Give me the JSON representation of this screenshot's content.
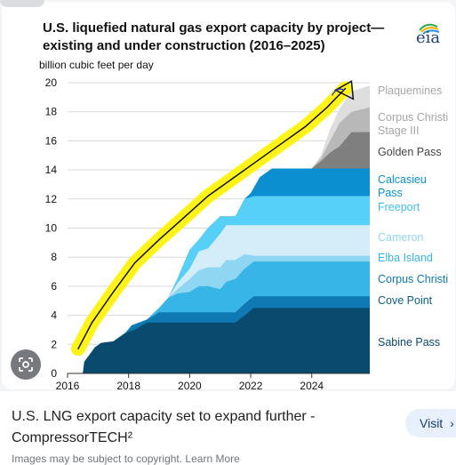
{
  "page": {
    "caption": "U.S. LNG export capacity set to expand further - CompressorTECH²",
    "visit_label": "Visit",
    "visit_icon": "chevron-right-icon",
    "bottom_text": "Images may be subject to copyright. Learn More",
    "lens_icon": "google-lens-icon"
  },
  "chart_data": {
    "type": "area",
    "title_line1": "U.S. liquefied natural gas export capacity by project—",
    "title_line2": "existing and under construction (2016–2025)",
    "ylabel": "billion cubic feet per day",
    "logo": "eia",
    "xlim": [
      2016,
      2025.9
    ],
    "ylim": [
      0,
      20
    ],
    "xticks": [
      2016,
      2018,
      2020,
      2022,
      2024
    ],
    "yticks": [
      0,
      2,
      4,
      6,
      8,
      10,
      12,
      14,
      16,
      18,
      20
    ],
    "grid": true,
    "legend_position": "right",
    "series": [
      {
        "name": "Sabine Pass",
        "color": "#0a4a6e",
        "points": [
          [
            2016.5,
            0
          ],
          [
            2016.55,
            0.8
          ],
          [
            2016.9,
            1.8
          ],
          [
            2017.1,
            2.1
          ],
          [
            2017.5,
            2.2
          ],
          [
            2017.9,
            2.8
          ],
          [
            2018.2,
            3.0
          ],
          [
            2018.6,
            3.5
          ],
          [
            2019.0,
            3.5
          ],
          [
            2019.5,
            3.5
          ],
          [
            2020.0,
            3.5
          ],
          [
            2020.5,
            3.5
          ],
          [
            2021.0,
            3.5
          ],
          [
            2021.5,
            3.5
          ],
          [
            2021.8,
            4.0
          ],
          [
            2022.1,
            4.5
          ],
          [
            2023.0,
            4.5
          ],
          [
            2024.0,
            4.5
          ],
          [
            2025.0,
            4.5
          ],
          [
            2025.9,
            4.5
          ]
        ]
      },
      {
        "name": "Cove Point",
        "color": "#0e79b2",
        "points": [
          [
            2016.5,
            0
          ],
          [
            2016.55,
            0.8
          ],
          [
            2016.9,
            1.8
          ],
          [
            2017.1,
            2.1
          ],
          [
            2017.5,
            2.2
          ],
          [
            2017.9,
            2.8
          ],
          [
            2018.1,
            3.3
          ],
          [
            2018.6,
            3.7
          ],
          [
            2019.0,
            4.2
          ],
          [
            2019.5,
            4.2
          ],
          [
            2020.0,
            4.2
          ],
          [
            2020.5,
            4.2
          ],
          [
            2021.0,
            4.2
          ],
          [
            2021.5,
            4.2
          ],
          [
            2021.8,
            4.8
          ],
          [
            2022.1,
            5.3
          ],
          [
            2023.0,
            5.3
          ],
          [
            2024.0,
            5.3
          ],
          [
            2025.0,
            5.3
          ],
          [
            2025.9,
            5.3
          ]
        ]
      },
      {
        "name": "Corpus Christi",
        "color": "#36b5e6",
        "points": [
          [
            2016.5,
            0
          ],
          [
            2016.55,
            0.8
          ],
          [
            2016.9,
            1.8
          ],
          [
            2017.1,
            2.1
          ],
          [
            2017.5,
            2.2
          ],
          [
            2017.9,
            2.8
          ],
          [
            2018.1,
            3.3
          ],
          [
            2018.6,
            3.7
          ],
          [
            2019.0,
            4.5
          ],
          [
            2019.3,
            5.2
          ],
          [
            2019.6,
            5.5
          ],
          [
            2020.0,
            5.6
          ],
          [
            2020.3,
            6.0
          ],
          [
            2020.6,
            6.0
          ],
          [
            2021.0,
            5.8
          ],
          [
            2021.2,
            6.3
          ],
          [
            2021.5,
            6.5
          ],
          [
            2021.8,
            7.2
          ],
          [
            2022.1,
            7.7
          ],
          [
            2023.0,
            7.7
          ],
          [
            2024.0,
            7.7
          ],
          [
            2025.0,
            7.7
          ],
          [
            2025.9,
            7.7
          ]
        ]
      },
      {
        "name": "Elba Island",
        "color": "#8fd6f2",
        "points": [
          [
            2016.5,
            0
          ],
          [
            2016.55,
            0.8
          ],
          [
            2016.9,
            1.8
          ],
          [
            2017.1,
            2.1
          ],
          [
            2017.5,
            2.2
          ],
          [
            2017.9,
            2.8
          ],
          [
            2018.1,
            3.3
          ],
          [
            2018.6,
            3.7
          ],
          [
            2019.0,
            4.5
          ],
          [
            2019.3,
            5.2
          ],
          [
            2019.6,
            5.8
          ],
          [
            2020.0,
            6.5
          ],
          [
            2020.3,
            7.1
          ],
          [
            2020.6,
            7.3
          ],
          [
            2021.0,
            7.3
          ],
          [
            2021.2,
            7.8
          ],
          [
            2021.5,
            7.8
          ],
          [
            2021.8,
            8.2
          ],
          [
            2022.1,
            8.1
          ],
          [
            2023.0,
            8.1
          ],
          [
            2024.0,
            8.1
          ],
          [
            2025.0,
            8.1
          ],
          [
            2025.9,
            8.1
          ]
        ]
      },
      {
        "name": "Cameron",
        "color": "#d3eef9",
        "points": [
          [
            2016.5,
            0
          ],
          [
            2016.55,
            0.8
          ],
          [
            2016.9,
            1.8
          ],
          [
            2017.1,
            2.1
          ],
          [
            2017.5,
            2.2
          ],
          [
            2017.9,
            2.8
          ],
          [
            2018.1,
            3.3
          ],
          [
            2018.6,
            3.7
          ],
          [
            2019.0,
            4.5
          ],
          [
            2019.3,
            5.2
          ],
          [
            2019.6,
            6.2
          ],
          [
            2020.0,
            7.2
          ],
          [
            2020.3,
            8.4
          ],
          [
            2020.6,
            8.6
          ],
          [
            2021.0,
            9.6
          ],
          [
            2021.2,
            10.2
          ],
          [
            2021.5,
            10.2
          ],
          [
            2021.8,
            10.2
          ],
          [
            2022.1,
            10.2
          ],
          [
            2023.0,
            10.2
          ],
          [
            2024.0,
            10.2
          ],
          [
            2025.0,
            10.2
          ],
          [
            2025.9,
            10.2
          ]
        ]
      },
      {
        "name": "Freeport",
        "color": "#57d0f7",
        "points": [
          [
            2016.5,
            0
          ],
          [
            2016.55,
            0.8
          ],
          [
            2016.9,
            1.8
          ],
          [
            2017.1,
            2.1
          ],
          [
            2017.5,
            2.2
          ],
          [
            2017.9,
            2.8
          ],
          [
            2018.1,
            3.3
          ],
          [
            2018.6,
            3.7
          ],
          [
            2019.0,
            4.5
          ],
          [
            2019.3,
            5.2
          ],
          [
            2019.6,
            6.5
          ],
          [
            2020.0,
            8.5
          ],
          [
            2020.3,
            9.2
          ],
          [
            2020.6,
            10.0
          ],
          [
            2021.0,
            10.8
          ],
          [
            2021.2,
            10.8
          ],
          [
            2021.5,
            10.8
          ],
          [
            2021.8,
            12.0
          ],
          [
            2022.1,
            12.2
          ],
          [
            2023.0,
            12.2
          ],
          [
            2024.0,
            12.2
          ],
          [
            2025.0,
            12.2
          ],
          [
            2025.9,
            12.2
          ]
        ]
      },
      {
        "name": "Calcasieu Pass",
        "color": "#0c8fd0",
        "points": [
          [
            2016.5,
            0
          ],
          [
            2016.55,
            0.8
          ],
          [
            2016.9,
            1.8
          ],
          [
            2017.1,
            2.1
          ],
          [
            2017.5,
            2.2
          ],
          [
            2017.9,
            2.8
          ],
          [
            2018.1,
            3.3
          ],
          [
            2018.6,
            3.7
          ],
          [
            2019.0,
            4.5
          ],
          [
            2019.3,
            5.2
          ],
          [
            2019.6,
            6.5
          ],
          [
            2020.0,
            8.5
          ],
          [
            2020.3,
            9.2
          ],
          [
            2020.6,
            10.0
          ],
          [
            2021.0,
            10.8
          ],
          [
            2021.2,
            10.8
          ],
          [
            2021.5,
            10.8
          ],
          [
            2021.8,
            12.0
          ],
          [
            2022.0,
            12.4
          ],
          [
            2022.3,
            13.5
          ],
          [
            2022.7,
            14.1
          ],
          [
            2023.0,
            14.1
          ],
          [
            2024.0,
            14.1
          ],
          [
            2025.0,
            14.1
          ],
          [
            2025.9,
            14.1
          ]
        ]
      },
      {
        "name": "Golden Pass",
        "color": "#7f7f7f",
        "points": [
          [
            2016.5,
            0
          ],
          [
            2016.55,
            0.8
          ],
          [
            2016.9,
            1.8
          ],
          [
            2017.1,
            2.1
          ],
          [
            2017.5,
            2.2
          ],
          [
            2017.9,
            2.8
          ],
          [
            2018.1,
            3.3
          ],
          [
            2018.6,
            3.7
          ],
          [
            2019.0,
            4.5
          ],
          [
            2019.3,
            5.2
          ],
          [
            2019.6,
            6.5
          ],
          [
            2020.0,
            8.5
          ],
          [
            2020.3,
            9.2
          ],
          [
            2020.6,
            10.0
          ],
          [
            2021.0,
            10.8
          ],
          [
            2021.2,
            10.8
          ],
          [
            2021.5,
            10.8
          ],
          [
            2021.8,
            12.0
          ],
          [
            2022.0,
            12.4
          ],
          [
            2022.3,
            13.5
          ],
          [
            2022.7,
            14.1
          ],
          [
            2023.0,
            14.1
          ],
          [
            2024.0,
            14.1
          ],
          [
            2024.3,
            14.6
          ],
          [
            2024.6,
            15.2
          ],
          [
            2024.9,
            15.6
          ],
          [
            2025.3,
            16.6
          ],
          [
            2025.9,
            16.6
          ]
        ]
      },
      {
        "name": "Corpus Christi Stage III",
        "color": "#b8b8b8",
        "points": [
          [
            2016.5,
            0
          ],
          [
            2016.55,
            0.8
          ],
          [
            2016.9,
            1.8
          ],
          [
            2017.1,
            2.1
          ],
          [
            2017.5,
            2.2
          ],
          [
            2017.9,
            2.8
          ],
          [
            2018.1,
            3.3
          ],
          [
            2018.6,
            3.7
          ],
          [
            2019.0,
            4.5
          ],
          [
            2019.3,
            5.2
          ],
          [
            2019.6,
            6.5
          ],
          [
            2020.0,
            8.5
          ],
          [
            2020.3,
            9.2
          ],
          [
            2020.6,
            10.0
          ],
          [
            2021.0,
            10.8
          ],
          [
            2021.2,
            10.8
          ],
          [
            2021.5,
            10.8
          ],
          [
            2021.8,
            12.0
          ],
          [
            2022.0,
            12.4
          ],
          [
            2022.3,
            13.5
          ],
          [
            2022.7,
            14.1
          ],
          [
            2023.0,
            14.1
          ],
          [
            2024.0,
            14.1
          ],
          [
            2024.3,
            14.8
          ],
          [
            2024.6,
            16.0
          ],
          [
            2024.9,
            17.2
          ],
          [
            2025.3,
            18.0
          ],
          [
            2025.9,
            18.3
          ]
        ]
      },
      {
        "name": "Plaquemines",
        "color": "#dedede",
        "points": [
          [
            2016.5,
            0
          ],
          [
            2016.55,
            0.8
          ],
          [
            2016.9,
            1.8
          ],
          [
            2017.1,
            2.1
          ],
          [
            2017.5,
            2.2
          ],
          [
            2017.9,
            2.8
          ],
          [
            2018.1,
            3.3
          ],
          [
            2018.6,
            3.7
          ],
          [
            2019.0,
            4.5
          ],
          [
            2019.3,
            5.2
          ],
          [
            2019.6,
            6.5
          ],
          [
            2020.0,
            8.5
          ],
          [
            2020.3,
            9.2
          ],
          [
            2020.6,
            10.0
          ],
          [
            2021.0,
            10.8
          ],
          [
            2021.2,
            10.8
          ],
          [
            2021.5,
            10.8
          ],
          [
            2021.8,
            12.0
          ],
          [
            2022.0,
            12.4
          ],
          [
            2022.3,
            13.5
          ],
          [
            2022.7,
            14.1
          ],
          [
            2023.0,
            14.1
          ],
          [
            2024.0,
            14.1
          ],
          [
            2024.3,
            15.0
          ],
          [
            2024.6,
            16.8
          ],
          [
            2024.9,
            18.2
          ],
          [
            2025.3,
            19.4
          ],
          [
            2025.9,
            19.8
          ]
        ]
      }
    ],
    "legend": [
      {
        "label": "Plaquemines",
        "color": "#a6a6a6"
      },
      {
        "label": "Corpus Christi Stage III",
        "color": "#a6a6a6"
      },
      {
        "label": "Golden Pass",
        "color": "#444444"
      },
      {
        "label": "Calcasieu Pass",
        "color": "#0c8fd0"
      },
      {
        "label": "Freeport",
        "color": "#3fbfe8"
      },
      {
        "label": "Cameron",
        "color": "#8fd6f2"
      },
      {
        "label": "Elba Island",
        "color": "#36b5e6"
      },
      {
        "label": "Corpus Christi",
        "color": "#0e79b2"
      },
      {
        "label": "Cove Point",
        "color": "#0e5b8a"
      },
      {
        "label": "Sabine Pass",
        "color": "#0a4a6e"
      }
    ],
    "annotation": {
      "type": "handwritten-highlight",
      "highlight_color": "#fff200",
      "ink_color": "#111111"
    }
  }
}
